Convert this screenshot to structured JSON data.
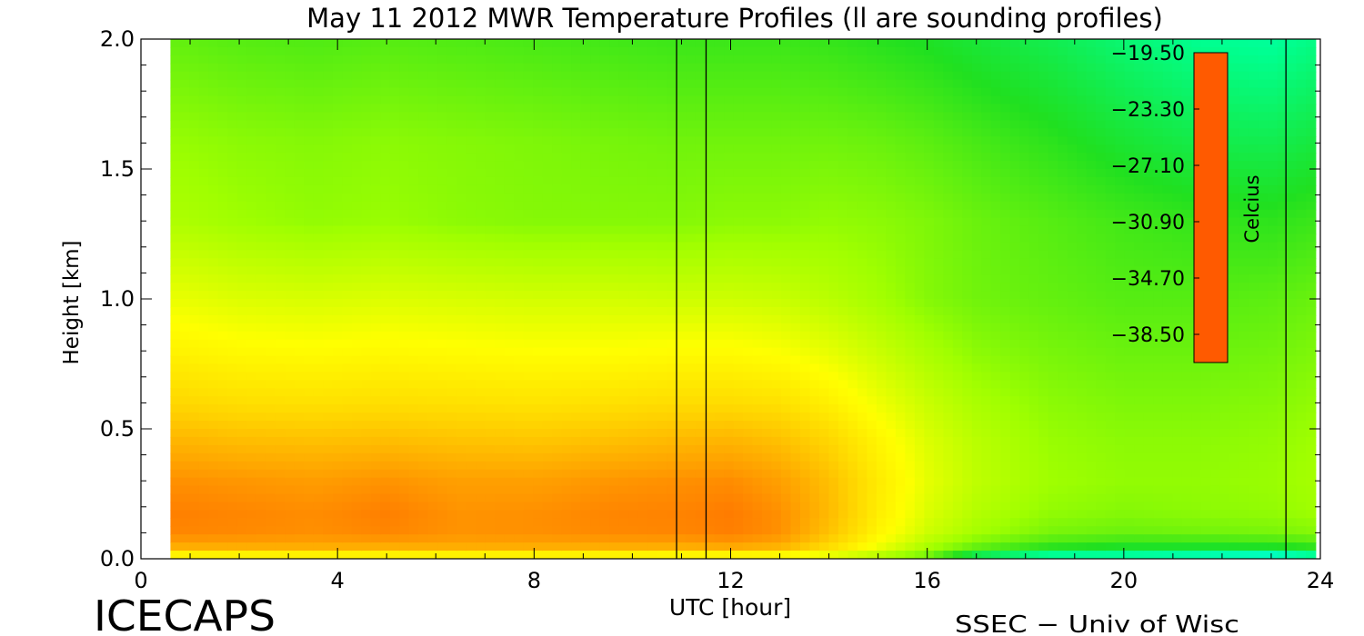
{
  "chart_data": {
    "type": "heatmap",
    "title": "May 11 2012 MWR Temperature Profiles (ll are sounding profiles)",
    "xlabel": "UTC [hour]",
    "ylabel": "Height [km]",
    "xlim": [
      0,
      24
    ],
    "ylim": [
      0,
      2.0
    ],
    "x_ticks": [
      "0",
      "4",
      "8",
      "12",
      "16",
      "20",
      "24"
    ],
    "y_ticks": [
      "0.0",
      "0.5",
      "1.0",
      "1.5",
      "2.0"
    ],
    "data_x_range": [
      0.6,
      23.9
    ],
    "sounding_times": [
      10.9,
      11.5,
      23.3
    ],
    "colorbar": {
      "label": "Celcius",
      "min": -40.4,
      "max": -19.5,
      "tick_labels": [
        "−19.50",
        "−23.30",
        "−27.10",
        "−30.90",
        "−34.70",
        "−38.50"
      ],
      "tick_values": [
        -19.5,
        -23.3,
        -27.1,
        -30.9,
        -34.7,
        -38.5
      ],
      "colors": [
        "#ff5a00",
        "#ff9a00",
        "#ffd000",
        "#ffff00",
        "#a0ff00",
        "#20e020",
        "#00ff90",
        "#00ffff",
        "#00a0ff",
        "#0040ff",
        "#0000e0",
        "#3010b0"
      ]
    },
    "height_levels": [
      0.0,
      0.05,
      0.1,
      0.18,
      0.3,
      0.45,
      0.6,
      0.8,
      1.0,
      1.3,
      1.6,
      2.0
    ],
    "profiles": [
      {
        "time": 0.6,
        "temps": [
          -26.0,
          -21.8,
          -20.8,
          -20.6,
          -21.1,
          -22.3,
          -23.6,
          -24.7,
          -25.6,
          -26.8,
          -27.2,
          -28.0
        ]
      },
      {
        "time": 2.0,
        "temps": [
          -26.0,
          -21.8,
          -20.9,
          -20.8,
          -21.3,
          -22.6,
          -23.9,
          -25.0,
          -25.9,
          -27.1,
          -27.4,
          -28.2
        ]
      },
      {
        "time": 3.5,
        "temps": [
          -26.0,
          -21.8,
          -21.1,
          -21.0,
          -21.5,
          -22.7,
          -24.0,
          -25.1,
          -26.0,
          -27.3,
          -27.5,
          -28.3
        ]
      },
      {
        "time": 5.0,
        "temps": [
          -26.0,
          -21.8,
          -20.8,
          -20.6,
          -21.2,
          -22.6,
          -23.9,
          -25.0,
          -25.9,
          -27.2,
          -27.4,
          -28.2
        ]
      },
      {
        "time": 6.5,
        "temps": [
          -26.0,
          -21.8,
          -21.2,
          -21.2,
          -21.6,
          -22.8,
          -24.0,
          -25.1,
          -26.0,
          -27.4,
          -27.5,
          -28.3
        ]
      },
      {
        "time": 8.0,
        "temps": [
          -26.0,
          -21.8,
          -21.1,
          -21.1,
          -21.6,
          -22.9,
          -24.1,
          -25.2,
          -26.1,
          -27.5,
          -27.6,
          -28.4
        ]
      },
      {
        "time": 9.5,
        "temps": [
          -26.0,
          -21.8,
          -20.9,
          -20.8,
          -21.3,
          -22.7,
          -24.0,
          -25.2,
          -26.1,
          -27.5,
          -27.7,
          -28.5
        ]
      },
      {
        "time": 11.0,
        "temps": [
          -26.2,
          -21.8,
          -20.8,
          -20.7,
          -21.1,
          -22.4,
          -23.8,
          -25.1,
          -26.2,
          -27.5,
          -27.8,
          -28.6
        ]
      },
      {
        "time": 12.0,
        "temps": [
          -26.2,
          -21.6,
          -20.6,
          -20.5,
          -21.0,
          -22.3,
          -23.8,
          -25.1,
          -26.2,
          -27.4,
          -27.8,
          -28.6
        ]
      },
      {
        "time": 13.0,
        "temps": [
          -26.2,
          -22.0,
          -21.1,
          -21.1,
          -21.6,
          -22.7,
          -24.0,
          -25.3,
          -26.3,
          -27.4,
          -27.8,
          -28.6
        ]
      },
      {
        "time": 14.0,
        "temps": [
          -26.4,
          -23.6,
          -22.8,
          -22.5,
          -22.7,
          -23.5,
          -24.6,
          -25.7,
          -26.6,
          -27.3,
          -27.8,
          -28.7
        ]
      },
      {
        "time": 15.0,
        "temps": [
          -27.0,
          -25.4,
          -24.8,
          -24.5,
          -24.4,
          -24.8,
          -25.5,
          -26.3,
          -27.0,
          -27.4,
          -27.9,
          -28.9
        ]
      },
      {
        "time": 16.0,
        "temps": [
          -28.0,
          -26.8,
          -26.2,
          -25.9,
          -25.7,
          -25.9,
          -26.3,
          -26.9,
          -27.5,
          -27.6,
          -28.1,
          -29.1
        ]
      },
      {
        "time": 17.0,
        "temps": [
          -30.5,
          -27.8,
          -27.0,
          -26.7,
          -26.5,
          -26.6,
          -26.9,
          -27.4,
          -27.8,
          -27.9,
          -28.4,
          -29.4
        ]
      },
      {
        "time": 18.5,
        "temps": [
          -32.0,
          -28.6,
          -27.7,
          -27.3,
          -27.1,
          -27.2,
          -27.4,
          -27.7,
          -28.0,
          -28.2,
          -28.8,
          -29.8
        ]
      },
      {
        "time": 20.0,
        "temps": [
          -32.0,
          -28.9,
          -27.9,
          -27.5,
          -27.3,
          -27.4,
          -27.6,
          -27.9,
          -28.2,
          -28.5,
          -29.3,
          -30.4
        ]
      },
      {
        "time": 21.5,
        "temps": [
          -32.4,
          -28.9,
          -27.8,
          -27.4,
          -27.3,
          -27.4,
          -27.6,
          -27.9,
          -28.2,
          -28.7,
          -29.7,
          -30.9
        ]
      },
      {
        "time": 23.0,
        "temps": [
          -33.0,
          -28.8,
          -27.7,
          -27.3,
          -27.2,
          -27.3,
          -27.5,
          -27.8,
          -28.1,
          -28.8,
          -29.8,
          -31.1
        ]
      },
      {
        "time": 23.9,
        "temps": [
          -32.0,
          -28.5,
          -27.5,
          -27.1,
          -27.0,
          -27.1,
          -27.3,
          -27.6,
          -27.9,
          -28.6,
          -29.5,
          -30.7
        ]
      }
    ]
  },
  "footer": {
    "left_logo": "ICECAPS",
    "right_credit": "SSEC − Univ of Wisc"
  }
}
